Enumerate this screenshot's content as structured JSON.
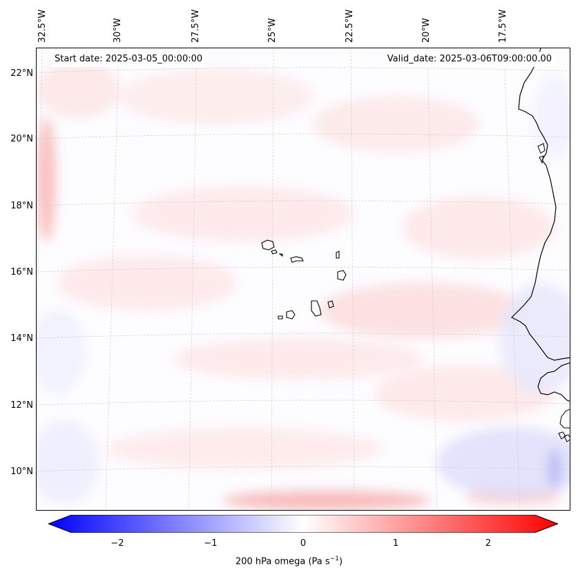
{
  "map": {
    "start_date": "Start date: 2025-03-05_00:00:00",
    "valid_date": "Valid_date: 2025-03-06T09:00:00.00",
    "lon_labels": [
      "32.5°W",
      "30°W",
      "27.5°W",
      "25°W",
      "22.5°W",
      "20°W",
      "17.5°W"
    ],
    "lat_labels": [
      "22°N",
      "20°N",
      "18°N",
      "16°N",
      "14°N",
      "12°N",
      "10°N"
    ],
    "variable": "200 hPa omega"
  },
  "colorbar": {
    "ticks": [
      "−2",
      "−1",
      "0",
      "1",
      "2"
    ],
    "tick_values": [
      -2,
      -1,
      0,
      1,
      2
    ],
    "range": [
      -2.5,
      2.5
    ],
    "label": "200 hPa omega (Pa s",
    "label_sup": "−1",
    "label_close": ")",
    "color_low": "#0000ff",
    "color_mid": "#ffffff",
    "color_high": "#ff0000"
  },
  "colors": {
    "coastline": "#000000",
    "gridline": "#cfcfcf"
  }
}
